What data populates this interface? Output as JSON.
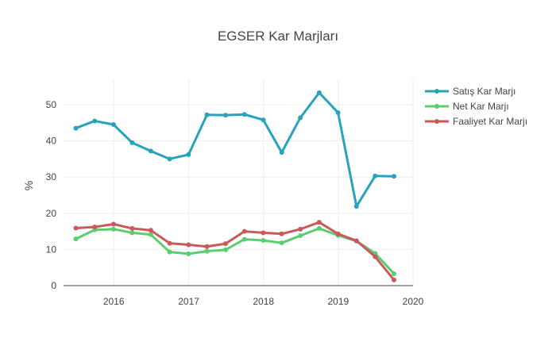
{
  "chart_data": {
    "type": "line",
    "title": "EGSER Kar Marjları",
    "xlabel": "",
    "ylabel": "%",
    "x": [
      "2015-06-30",
      "2015-09-30",
      "2015-12-31",
      "2016-03-31",
      "2016-06-30",
      "2016-09-30",
      "2016-12-31",
      "2017-03-31",
      "2017-06-30",
      "2017-09-30",
      "2017-12-31",
      "2018-03-31",
      "2018-06-30",
      "2018-09-30",
      "2018-12-31",
      "2019-03-31",
      "2019-06-30",
      "2019-09-30"
    ],
    "x_ticks": [
      "2016",
      "2017",
      "2018",
      "2019",
      "2020"
    ],
    "y_ticks": [
      "0",
      "10",
      "20",
      "30",
      "40",
      "50"
    ],
    "xlim": [
      "2015-05-01",
      "2020-01-01"
    ],
    "ylim": [
      0,
      57
    ],
    "grid": true,
    "legend_position": "top-right",
    "series": [
      {
        "name": "Satış Kar Marjı",
        "color": "#27a3bd",
        "values": [
          43.5,
          45.5,
          44.5,
          39.5,
          37.2,
          35.0,
          36.2,
          47.2,
          47.1,
          47.3,
          45.8,
          36.8,
          46.4,
          53.3,
          47.8,
          21.9,
          30.3,
          30.2
        ]
      },
      {
        "name": "Net Kar Marjı",
        "color": "#5ccd6e",
        "values": [
          12.9,
          15.4,
          15.6,
          14.6,
          14.1,
          9.3,
          8.8,
          9.5,
          9.9,
          12.8,
          12.5,
          11.8,
          13.8,
          15.8,
          13.9,
          12.3,
          8.9,
          3.3
        ]
      },
      {
        "name": "Faaliyet Kar Marjı",
        "color": "#c85a5a",
        "values": [
          15.9,
          16.2,
          17.0,
          15.8,
          15.3,
          11.7,
          11.3,
          10.8,
          11.6,
          15.0,
          14.6,
          14.3,
          15.6,
          17.5,
          14.3,
          12.4,
          8.0,
          1.6
        ]
      }
    ]
  }
}
